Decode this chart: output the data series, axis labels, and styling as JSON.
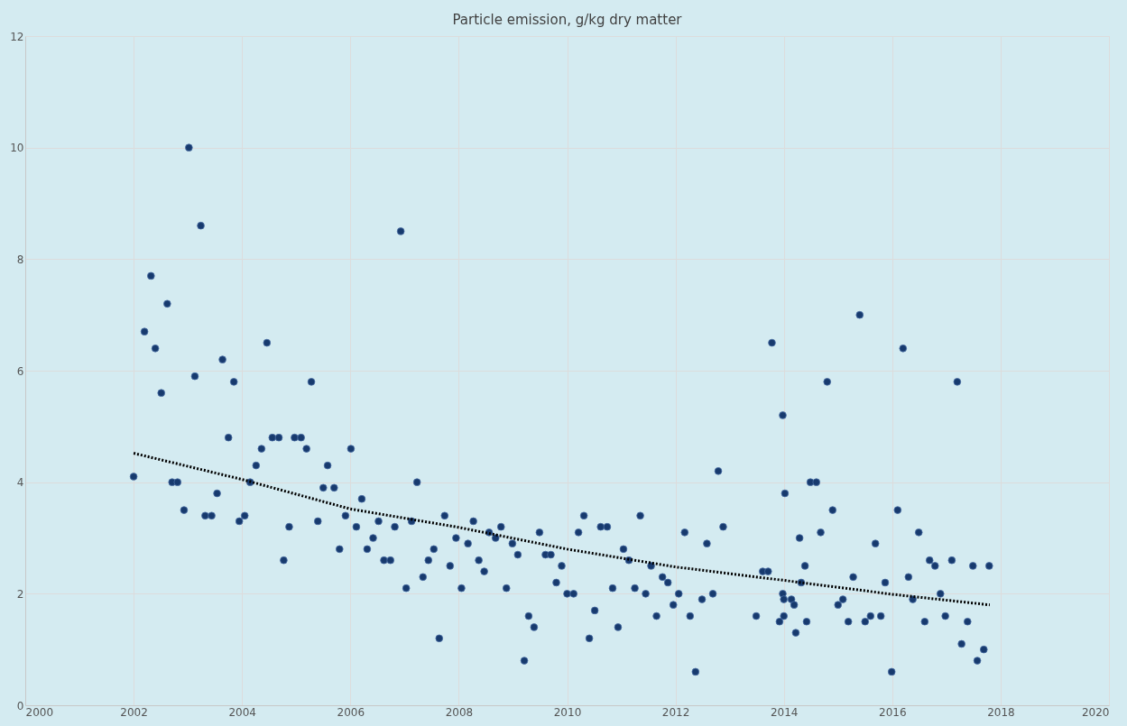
{
  "chart_data": {
    "type": "scatter",
    "title": "Particle emission, g/kg dry matter",
    "xlim": [
      2000,
      2020
    ],
    "xticks": [
      2000,
      2002,
      2004,
      2006,
      2008,
      2010,
      2012,
      2014,
      2016,
      2018,
      2020
    ],
    "ylim": [
      0,
      12
    ],
    "yticks": [
      0,
      2,
      4,
      6,
      8,
      10,
      12
    ],
    "grid": true,
    "marker": "circle",
    "series": [
      {
        "color": "#173a6e",
        "x": [
          2002.0,
          2002.2,
          2002.32,
          2002.4,
          2002.51,
          2002.62,
          2002.71,
          2002.81,
          2002.93,
          2003.02,
          2003.13,
          2003.24,
          2003.32,
          2003.44,
          2003.54,
          2003.64,
          2003.75,
          2003.85,
          2003.95,
          2004.05,
          2004.15,
          2004.26,
          2004.36,
          2004.46,
          2004.56,
          2004.68,
          2004.77,
          2004.87,
          2004.97,
          2005.09,
          2005.19,
          2005.28,
          2005.4,
          2005.5,
          2005.58,
          2005.7,
          2005.8,
          2005.91,
          2006.01,
          2006.11,
          2006.21,
          2006.31,
          2006.42,
          2006.52,
          2006.62,
          2006.74,
          2006.82,
          2006.93,
          2007.03,
          2007.13,
          2007.23,
          2007.34,
          2007.44,
          2007.54,
          2007.64,
          2007.74,
          2007.84,
          2007.95,
          2008.05,
          2008.17,
          2008.27,
          2008.37,
          2008.47,
          2008.56,
          2008.68,
          2008.78,
          2008.88,
          2008.99,
          2009.09,
          2009.21,
          2009.29,
          2009.39,
          2009.49,
          2009.6,
          2009.7,
          2009.8,
          2009.9,
          2010.0,
          2010.12,
          2010.21,
          2010.31,
          2010.41,
          2010.51,
          2010.62,
          2010.74,
          2010.84,
          2010.94,
          2011.04,
          2011.14,
          2011.25,
          2011.35,
          2011.45,
          2011.55,
          2011.65,
          2011.76,
          2011.86,
          2011.96,
          2012.06,
          2012.17,
          2012.27,
          2012.37,
          2012.49,
          2012.58,
          2012.69,
          2012.79,
          2012.88,
          2013.49,
          2013.61,
          2013.71,
          2013.78,
          2013.92,
          2013.98,
          2014.02,
          2013.98,
          2014.0,
          2014.0,
          2014.14,
          2014.19,
          2014.22,
          2014.29,
          2014.32,
          2014.39,
          2014.42,
          2014.49,
          2014.6,
          2014.68,
          2014.8,
          2014.9,
          2015.0,
          2015.09,
          2015.19,
          2015.28,
          2015.4,
          2015.5,
          2015.6,
          2015.69,
          2015.79,
          2015.87,
          2015.99,
          2016.1,
          2016.2,
          2016.3,
          2016.38,
          2016.49,
          2016.6,
          2016.69,
          2016.79,
          2016.89,
          2016.98,
          2017.1,
          2017.2,
          2017.28,
          2017.39,
          2017.49,
          2017.57,
          2017.69,
          2017.79
        ],
        "values": [
          4.1,
          6.7,
          7.7,
          6.4,
          5.6,
          7.2,
          4.0,
          4.0,
          3.5,
          10.0,
          5.9,
          8.6,
          3.4,
          3.4,
          3.8,
          6.2,
          4.8,
          5.8,
          3.3,
          3.4,
          4.0,
          4.3,
          4.6,
          6.5,
          4.8,
          4.8,
          2.6,
          3.2,
          4.8,
          4.8,
          4.6,
          5.8,
          3.3,
          3.9,
          4.3,
          3.9,
          2.8,
          3.4,
          4.6,
          3.2,
          3.7,
          2.8,
          3.0,
          3.3,
          2.6,
          2.6,
          3.2,
          8.5,
          2.1,
          3.3,
          4.0,
          2.3,
          2.6,
          2.8,
          1.2,
          3.4,
          2.5,
          3.0,
          2.1,
          2.9,
          3.3,
          2.6,
          2.4,
          3.1,
          3.0,
          3.2,
          2.1,
          2.9,
          2.7,
          0.8,
          1.6,
          1.4,
          3.1,
          2.7,
          2.7,
          2.2,
          2.5,
          2.0,
          2.0,
          3.1,
          3.4,
          1.2,
          1.7,
          3.2,
          3.2,
          2.1,
          1.4,
          2.8,
          2.6,
          2.1,
          3.4,
          2.0,
          2.5,
          1.6,
          2.3,
          2.2,
          1.8,
          2.0,
          3.1,
          1.6,
          0.6,
          1.9,
          2.9,
          2.0,
          4.2,
          3.2,
          1.6,
          2.4,
          2.4,
          6.5,
          1.5,
          5.2,
          3.8,
          2.0,
          1.9,
          1.6,
          1.9,
          1.8,
          1.3,
          3.0,
          2.2,
          2.5,
          1.5,
          4.0,
          4.0,
          3.1,
          5.8,
          3.5,
          1.8,
          1.9,
          1.5,
          2.3,
          7.0,
          1.5,
          1.6,
          2.9,
          1.6,
          2.2,
          0.6,
          3.5,
          6.4,
          2.3,
          1.9,
          3.1,
          1.5,
          2.6,
          2.5,
          2.0,
          1.6,
          2.6,
          5.8,
          1.1,
          1.5,
          2.5,
          0.8,
          1.0,
          2.5
        ]
      },
      {
        "type": "line",
        "color": "#000000",
        "line_style": "dotted",
        "marker": "none",
        "x": [
          2002,
          2004,
          2006,
          2008,
          2010,
          2012,
          2014,
          2016,
          2017.8
        ],
        "values": [
          4.52,
          4.05,
          3.52,
          3.19,
          2.8,
          2.48,
          2.24,
          1.99,
          1.8
        ]
      }
    ]
  }
}
